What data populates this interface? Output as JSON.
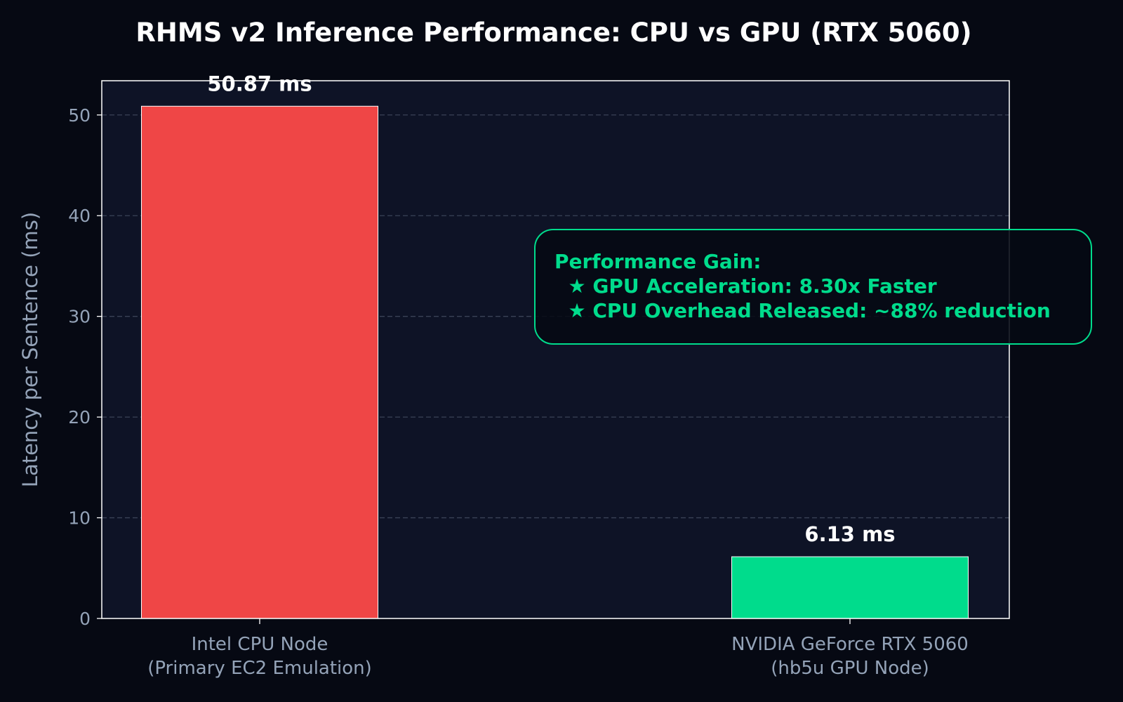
{
  "chart_data": {
    "type": "bar",
    "title": "RHMS v2 Inference Performance: CPU vs GPU (RTX 5060)",
    "xlabel": "",
    "ylabel": "Latency per Sentence (ms)",
    "categories": [
      [
        "Intel CPU Node",
        "(Primary EC2 Emulation)"
      ],
      [
        "NVIDIA GeForce RTX 5060",
        "(hb5u GPU Node)"
      ]
    ],
    "values": [
      50.87,
      6.13
    ],
    "data_labels": [
      "50.87 ms",
      "6.13 ms"
    ],
    "bar_colors": [
      "#ef4646",
      "#00dc8c"
    ],
    "ylim": [
      0,
      53.4
    ],
    "yticks": [
      0,
      10,
      20,
      30,
      40,
      50
    ],
    "grid": true,
    "annotation": {
      "lines": [
        "Performance Gain:",
        "  ★ GPU Acceleration: 8.30x Faster",
        "  ★ CPU Overhead Released: ~88% reduction"
      ],
      "color": "#00dc8c"
    },
    "colors": {
      "figure_bg": "#060913",
      "plot_bg": "#0e1326",
      "grid": "#3a4256",
      "text": "#ffffff",
      "muted": "#94a3b8"
    }
  }
}
